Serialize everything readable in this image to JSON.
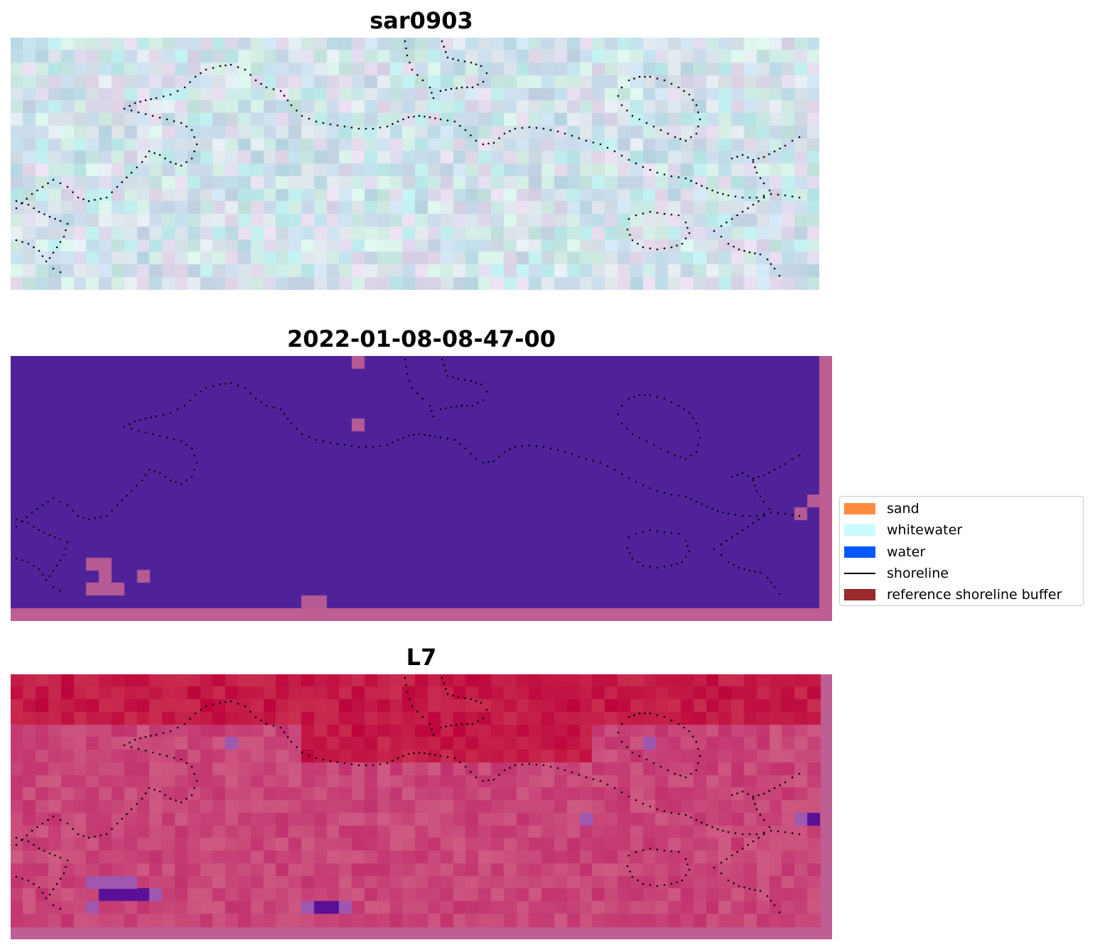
{
  "panels": [
    {
      "title": "sar0903",
      "style": "sar"
    },
    {
      "title": "2022-01-08-08-47-00",
      "style": "classified"
    },
    {
      "title": "L7",
      "style": "magenta"
    }
  ],
  "colors": {
    "classified_background": "#50229a",
    "classified_edge": "#be5e92",
    "sand": "#ff8c3e",
    "whitewater": "#c8fcfc",
    "water": "#0057ff",
    "shoreline": "#000000",
    "reference_buffer": "#9b2b2e",
    "reference_buffer_edge": "#7a1f22",
    "dots": "#000000"
  },
  "legend": {
    "items": [
      {
        "label": "sand",
        "kind": "patch",
        "color": "#ff8c3e"
      },
      {
        "label": "whitewater",
        "kind": "patch",
        "color": "#c8fcfc"
      },
      {
        "label": "water",
        "kind": "patch",
        "color": "#0057ff"
      },
      {
        "label": "shoreline",
        "kind": "line",
        "color": "#000000"
      },
      {
        "label": "reference shoreline buffer",
        "kind": "patch",
        "color": "#9b2b2e"
      }
    ]
  }
}
